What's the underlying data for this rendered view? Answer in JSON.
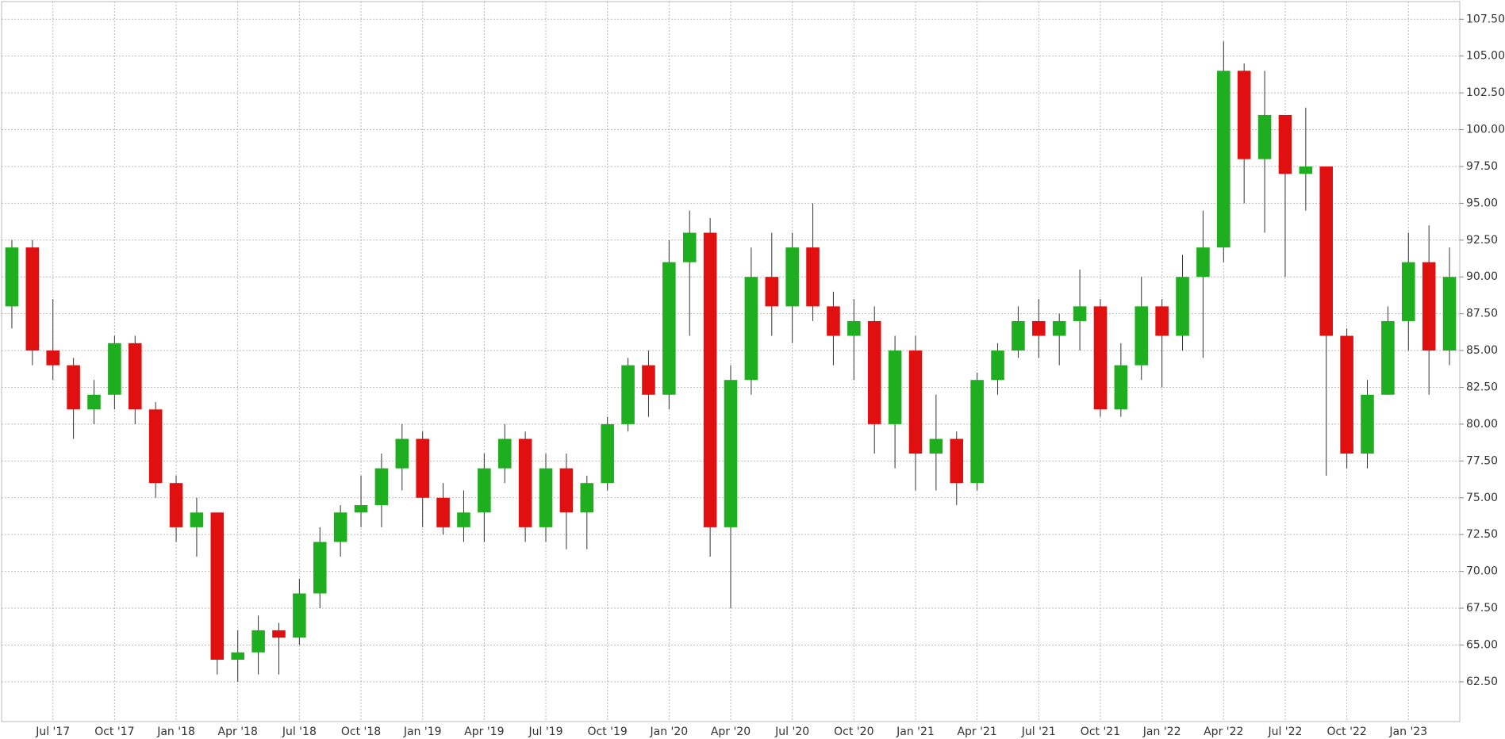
{
  "chart_data": {
    "type": "candlestick",
    "categories": [
      null,
      null,
      "Jul '17",
      null,
      null,
      "Oct '17",
      null,
      null,
      "Jan '18",
      null,
      null,
      "Apr '18",
      null,
      null,
      "Jul '18",
      null,
      null,
      "Oct '18",
      null,
      null,
      "Jan '19",
      null,
      null,
      "Apr '19",
      null,
      null,
      "Jul '19",
      null,
      null,
      "Oct '19",
      null,
      null,
      "Jan '20",
      null,
      null,
      "Apr '20",
      null,
      null,
      "Jul '20",
      null,
      null,
      "Oct '20",
      null,
      null,
      "Jan '21",
      null,
      null,
      "Apr '21",
      null,
      null,
      "Jul '21",
      null,
      null,
      "Oct '21",
      null,
      null,
      "Jan '22",
      null,
      null,
      "Apr '22",
      null,
      null,
      "Jul '22",
      null,
      null,
      "Oct '22",
      null,
      null,
      "Jan '23",
      null,
      null
    ],
    "open": [
      88,
      92,
      85,
      84,
      81,
      82,
      85.5,
      81,
      76,
      73,
      74,
      64,
      64.5,
      66,
      65.5,
      68.5,
      72,
      74,
      74.5,
      77,
      79,
      75,
      73,
      74,
      77,
      79,
      73,
      77,
      74,
      76,
      80,
      84,
      82,
      91,
      93,
      73,
      83,
      90,
      88,
      92,
      88,
      86,
      87,
      80,
      85,
      78,
      79,
      76,
      83,
      85,
      87,
      86,
      87,
      88,
      81,
      84,
      88,
      86,
      90,
      92,
      104,
      98,
      101,
      97,
      97.5,
      86,
      78,
      82,
      87,
      91,
      85
    ],
    "high": [
      92.5,
      92.5,
      88.5,
      84.5,
      83,
      86,
      86,
      81.5,
      76.5,
      75,
      74,
      66,
      67,
      66.5,
      69.5,
      73,
      74.5,
      76.5,
      78,
      80,
      79.5,
      76,
      75.5,
      78,
      80,
      79.5,
      78,
      78,
      76.5,
      80.5,
      84.5,
      85,
      92.5,
      94.5,
      94,
      84,
      92,
      93,
      93,
      95,
      89,
      88.5,
      88,
      86,
      86,
      82,
      79.5,
      83.5,
      85.5,
      88,
      88.5,
      87.5,
      90.5,
      88.5,
      85.5,
      90,
      88.5,
      91.5,
      94.5,
      106,
      104.5,
      104,
      101,
      101.5,
      97.5,
      86.5,
      83,
      88,
      93,
      93.5,
      92
    ],
    "low": [
      86.5,
      84,
      83,
      79,
      80,
      81,
      80,
      75,
      72,
      71,
      63,
      62.5,
      63,
      63,
      65,
      67.5,
      71,
      73,
      73,
      75.5,
      73,
      72.5,
      72,
      72,
      76,
      72,
      72,
      71.5,
      71.5,
      75.5,
      79.5,
      80.5,
      81,
      86,
      71,
      67.5,
      82,
      86,
      85.5,
      87,
      84,
      83,
      78,
      77,
      75.5,
      75.5,
      74.5,
      75.5,
      82,
      84.5,
      84.5,
      84,
      85,
      80.5,
      80.5,
      83,
      82.5,
      85,
      84.5,
      91,
      95,
      93,
      90,
      94.5,
      76.5,
      77,
      77,
      82,
      85,
      82,
      84
    ],
    "close": [
      92,
      85,
      84,
      81,
      82,
      85.5,
      81,
      76,
      73,
      74,
      64,
      64.5,
      66,
      65.5,
      68.5,
      72,
      74,
      74.5,
      77,
      79,
      75,
      73,
      74,
      77,
      79,
      73,
      77,
      74,
      76,
      80,
      84,
      82,
      91,
      93,
      73,
      83,
      90,
      88,
      92,
      88,
      86,
      87,
      80,
      85,
      78,
      79,
      76,
      83,
      85,
      87,
      86,
      87,
      88,
      81,
      84,
      88,
      86,
      90,
      92,
      104,
      98,
      101,
      97,
      97.5,
      86,
      78,
      82,
      87,
      91,
      85,
      90
    ],
    "up_color": "#1fae1f",
    "down_color": "#e01010",
    "ylim": [
      59.8,
      108.7
    ],
    "yticks": [
      {
        "value": 62.5,
        "label": "62.50"
      },
      {
        "value": 65,
        "label": "65.00"
      },
      {
        "value": 67.5,
        "label": "67.50"
      },
      {
        "value": 70,
        "label": "70.00"
      },
      {
        "value": 72.5,
        "label": "72.50"
      },
      {
        "value": 75,
        "label": "75.00"
      },
      {
        "value": 77.5,
        "label": "77.50"
      },
      {
        "value": 80,
        "label": "80.00"
      },
      {
        "value": 82.5,
        "label": "82.50"
      },
      {
        "value": 85,
        "label": "85.00"
      },
      {
        "value": 87.5,
        "label": "87.50"
      },
      {
        "value": 90,
        "label": "90.00"
      },
      {
        "value": 92.5,
        "label": "92.50"
      },
      {
        "value": 95,
        "label": "95.00"
      },
      {
        "value": 97.5,
        "label": "97.50"
      },
      {
        "value": 100,
        "label": "100.00"
      },
      {
        "value": 102.5,
        "label": "102.50"
      },
      {
        "value": 105,
        "label": "105.00"
      },
      {
        "value": 107.5,
        "label": "107.50"
      }
    ],
    "grid": true
  }
}
